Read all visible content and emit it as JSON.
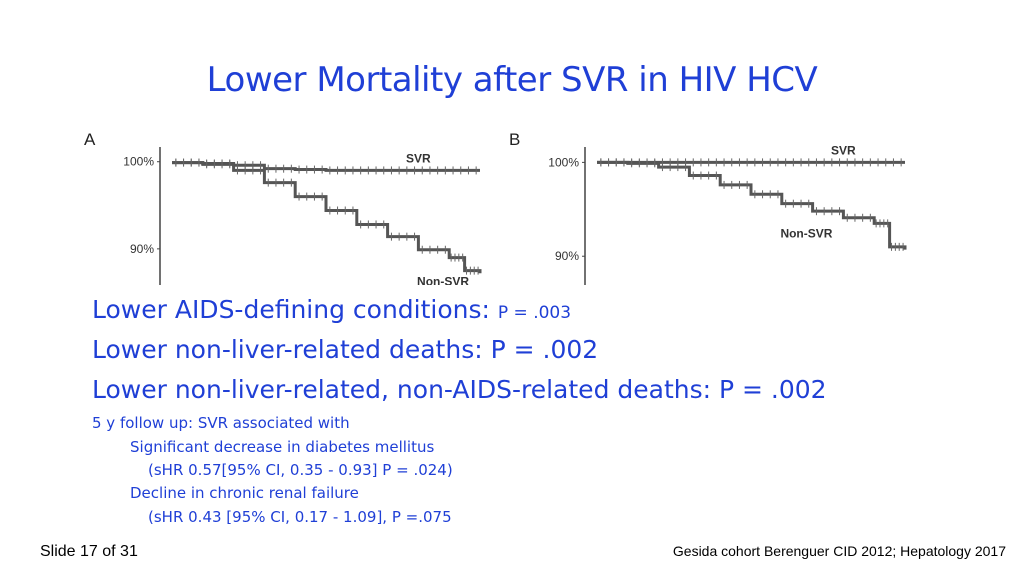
{
  "title": "Lower Mortality after SVR in HIV HCV",
  "chart_data": [
    {
      "type": "line",
      "panel_label": "A",
      "ytick_labels": [
        "100%",
        "90%"
      ],
      "ylim": [
        87,
        101
      ],
      "xlim": [
        0,
        100
      ],
      "series": [
        {
          "name": "SVR",
          "x": [
            0,
            10,
            20,
            30,
            40,
            50,
            60,
            70,
            80,
            90,
            100
          ],
          "y": [
            99.9,
            99.8,
            99.6,
            99.2,
            99.1,
            99.0,
            99.0,
            99.0,
            99.0,
            99.0,
            99.0
          ]
        },
        {
          "name": "Non-SVR",
          "x": [
            0,
            10,
            20,
            30,
            40,
            50,
            60,
            70,
            80,
            90,
            95,
            100
          ],
          "y": [
            99.9,
            99.7,
            99.0,
            97.6,
            96.0,
            94.4,
            92.8,
            91.4,
            89.9,
            89.0,
            87.5,
            87.2
          ]
        }
      ]
    },
    {
      "type": "line",
      "panel_label": "B",
      "ytick_labels": [
        "100%",
        "90%"
      ],
      "ylim": [
        88,
        101
      ],
      "xlim": [
        0,
        100
      ],
      "series": [
        {
          "name": "SVR",
          "x": [
            0,
            10,
            20,
            30,
            40,
            50,
            60,
            70,
            80,
            90,
            100
          ],
          "y": [
            100,
            100,
            100,
            100,
            100,
            100,
            100,
            100,
            100,
            100,
            100
          ]
        },
        {
          "name": "Non-SVR",
          "x": [
            0,
            10,
            20,
            30,
            40,
            50,
            60,
            70,
            80,
            90,
            95,
            100
          ],
          "y": [
            100,
            99.9,
            99.5,
            98.6,
            97.6,
            96.6,
            95.6,
            94.8,
            94.1,
            93.5,
            91.0,
            90.7
          ]
        }
      ]
    }
  ],
  "lines": {
    "aids_label": "Lower AIDS-defining conditions: ",
    "aids_p": "P = .003",
    "nonliver": "Lower non-liver-related deaths: P = .002",
    "nonliver_nonaids": "Lower non-liver-related, non-AIDS-related deaths: P = .002",
    "followup": "5 y follow up: SVR associated with",
    "diabetes": "Significant decrease in diabetes mellitus",
    "diabetes_shr": "(sHR 0.57[95% CI, 0.35 - 0.93] P = .024)",
    "renal": "Decline in chronic renal failure",
    "renal_shr": "(sHR 0.43 [95% CI, 0.17 - 1.09], P =.075"
  },
  "footer": {
    "slide": "Slide 17 of 31",
    "source": "Gesida cohort Berenguer CID 2012; Hepatology 2017"
  }
}
